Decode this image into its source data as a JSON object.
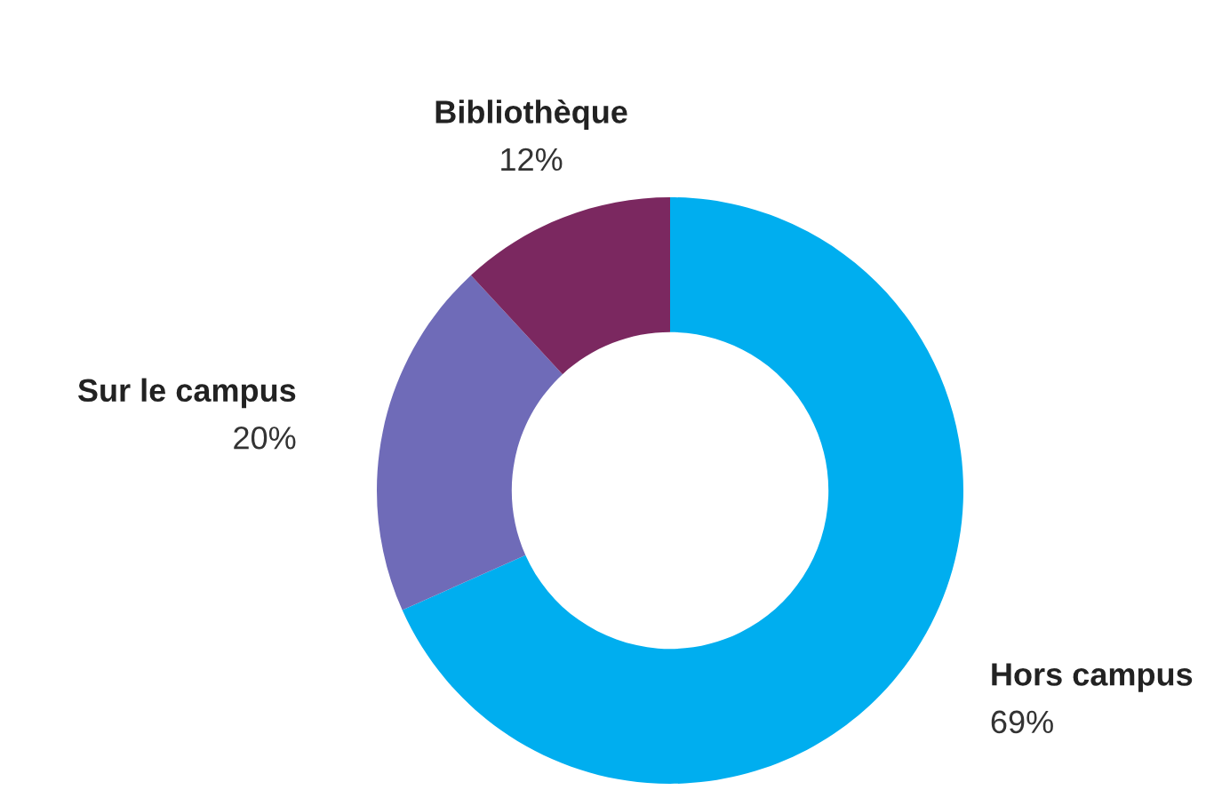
{
  "chart_data": {
    "type": "donut",
    "categories": [
      "Hors campus",
      "Sur le campus",
      "Bibliothèque"
    ],
    "values": [
      69,
      20,
      12
    ],
    "colors": [
      "#00aeef",
      "#6f6bb8",
      "#7b2860"
    ],
    "value_labels": [
      "69%",
      "20%",
      "12%"
    ],
    "legend": false
  }
}
